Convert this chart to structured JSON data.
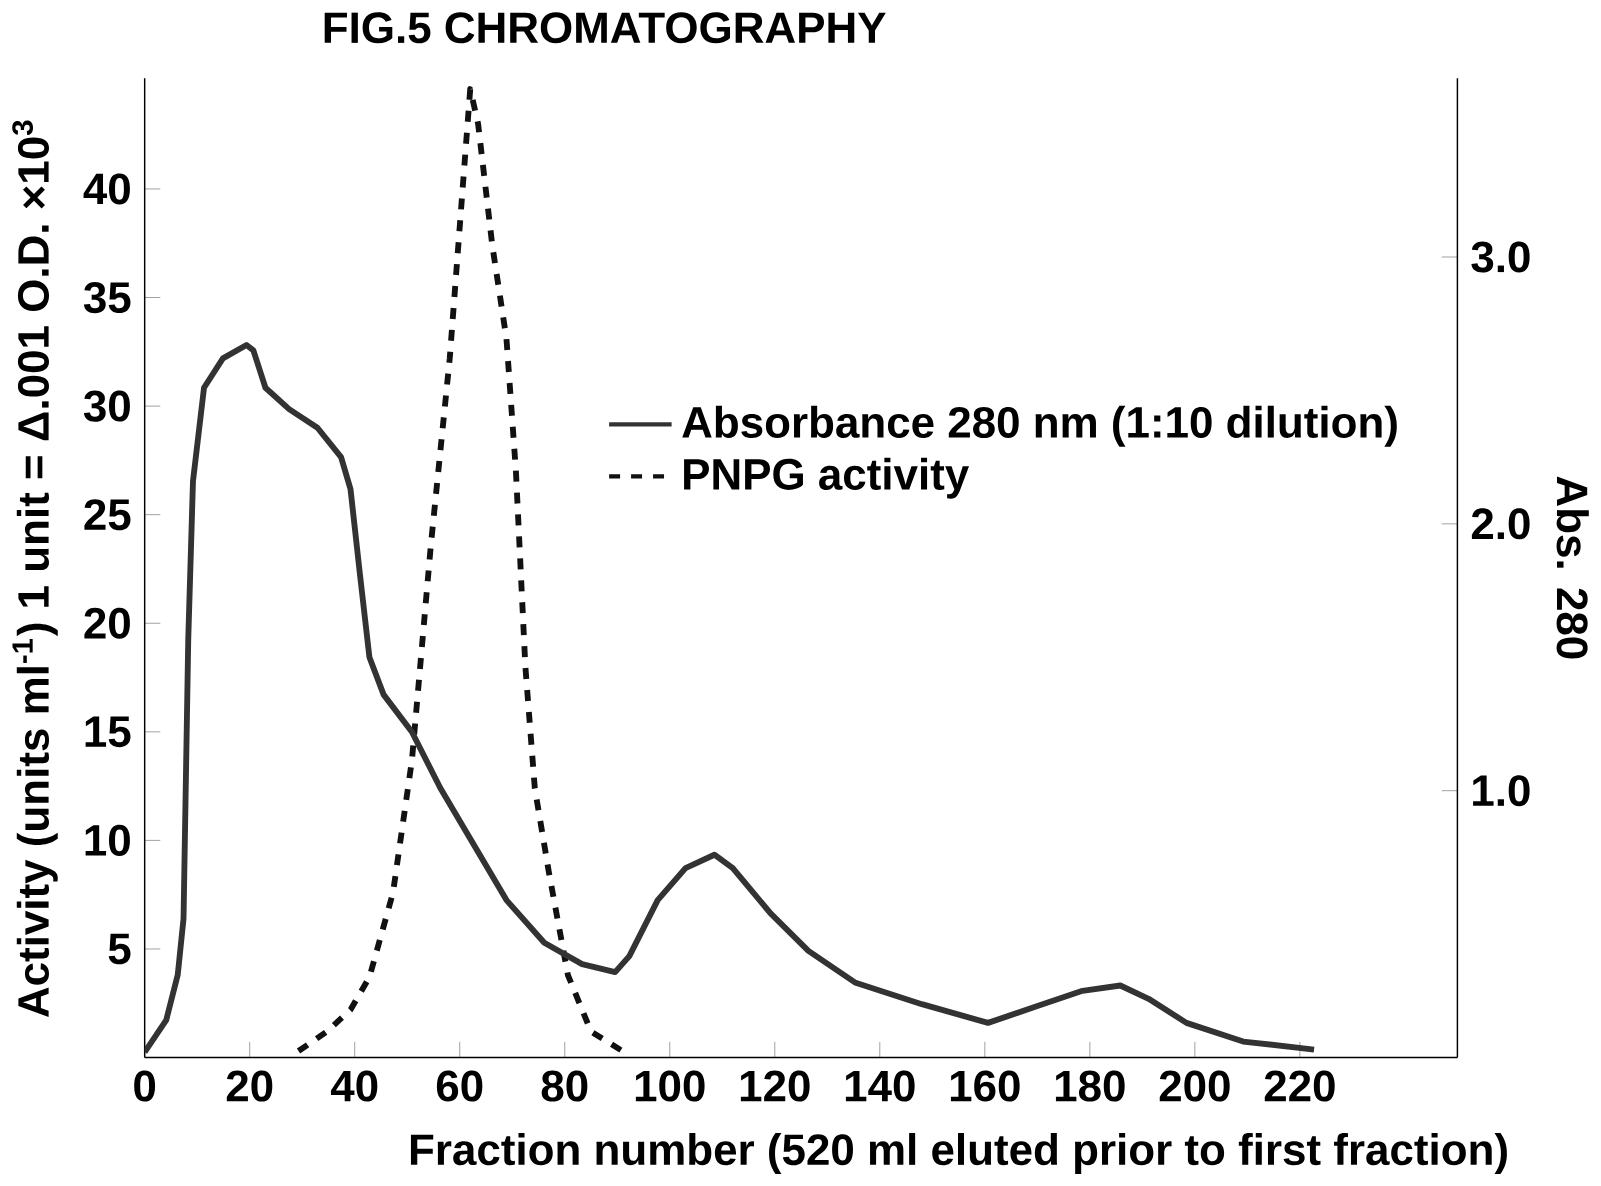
{
  "chart_data": {
    "type": "line",
    "title": "FIG.5 CHROMATOGRAPHY",
    "xlabel": "Fraction number (520 ml eluted prior to first fraction)",
    "ylabel": "Activity (units ml$^{-1}$)   1 unit = Δ.001 O.D.  ×10$^{3}$",
    "y2label": "Abs. 280",
    "xlim": [
      0,
      250
    ],
    "xticks": [
      0,
      20,
      40,
      60,
      80,
      100,
      120,
      140,
      160,
      180,
      200,
      220
    ],
    "ylim": [
      0,
      45.1
    ],
    "yticks": [
      5,
      10,
      15,
      20,
      25,
      30,
      35,
      40
    ],
    "y2lim": [
      0,
      3.67
    ],
    "y2ticks": [
      {
        "value": 1,
        "label": "1.0"
      },
      {
        "value": 2,
        "label": "2.0"
      },
      {
        "value": 3,
        "label": "3.0"
      }
    ],
    "legend": "right",
    "series": [
      {
        "name": "Absorbance 280 nm (1:10 dilution)",
        "color": "#333333",
        "axis": "y2",
        "line_style": "solid",
        "x": [
          0,
          4.1,
          6.3,
          7.4,
          8.3,
          9.2,
          11.3,
          14.9,
          19.4,
          20.7,
          23,
          27.5,
          32.9,
          37.4,
          39.2,
          41,
          42.8,
          45.5,
          50.9,
          56.3,
          63.5,
          68.9,
          76.1,
          83.3,
          89.6,
          92.3,
          97.7,
          103,
          108.5,
          112,
          119.2,
          126.4,
          135.4,
          148,
          160.6,
          169.6,
          178.6,
          185.8,
          191.2,
          198.4,
          209.2,
          222.7
        ],
        "values": [
          0.02,
          0.14,
          0.31,
          0.52,
          1.57,
          2.16,
          2.51,
          2.62,
          2.67,
          2.65,
          2.51,
          2.43,
          2.36,
          2.25,
          2.13,
          1.81,
          1.5,
          1.36,
          1.22,
          1.01,
          0.77,
          0.59,
          0.43,
          0.35,
          0.32,
          0.38,
          0.59,
          0.71,
          0.76,
          0.71,
          0.54,
          0.4,
          0.28,
          0.2,
          0.13,
          0.19,
          0.25,
          0.27,
          0.22,
          0.13,
          0.06,
          0.03
        ]
      },
      {
        "name": "PNPG activity",
        "color": "#111111",
        "axis": "y",
        "line_style": "dashed",
        "x": [
          29.3,
          34.7,
          39.2,
          42.8,
          47.3,
          50.9,
          54.5,
          58.1,
          60.8,
          62,
          63.5,
          66.2,
          68.9,
          70.7,
          72.5,
          74.3,
          77,
          80.6,
          85,
          92.3
        ],
        "values": [
          0.3,
          1.2,
          2.2,
          3.7,
          7.6,
          13.7,
          23.6,
          32.2,
          40.8,
          44.6,
          43,
          37.4,
          33.1,
          27,
          18,
          12.4,
          8.5,
          3.8,
          1.2,
          0.1
        ]
      }
    ]
  }
}
